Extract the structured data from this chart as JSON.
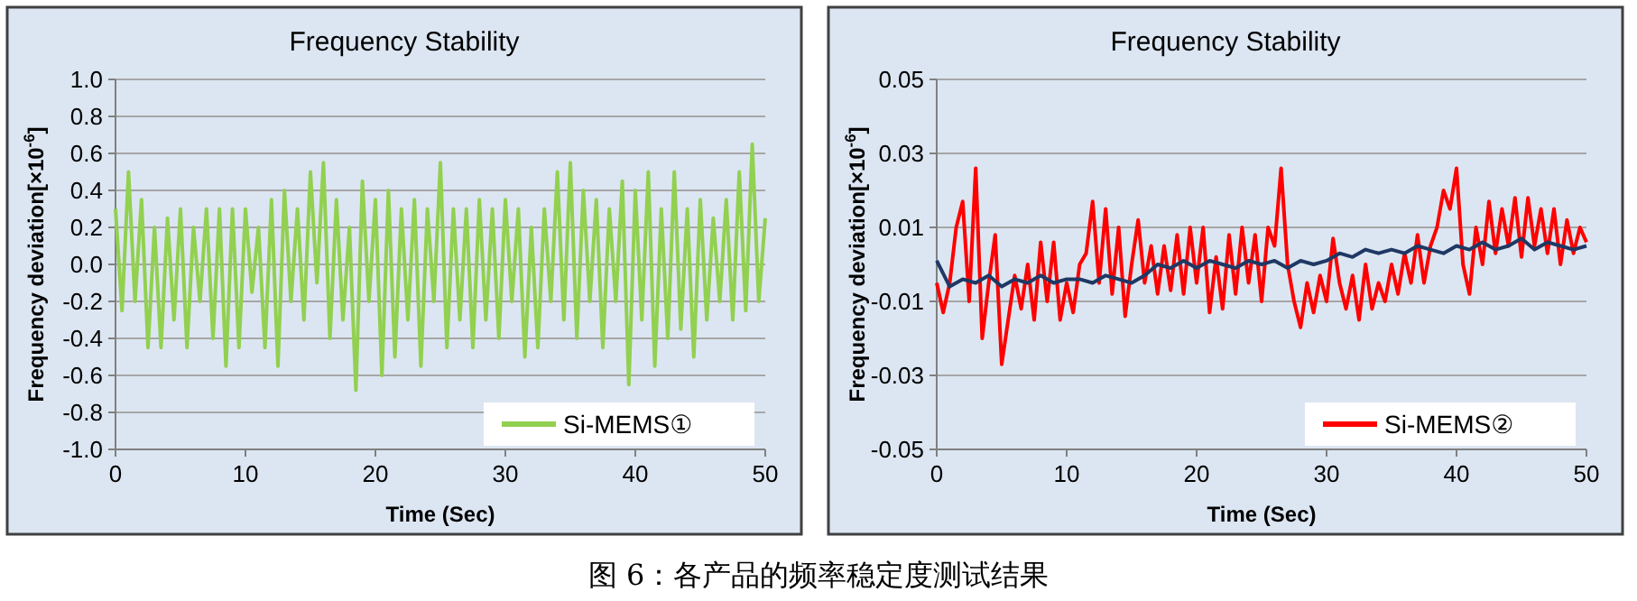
{
  "chart_data": [
    {
      "type": "line",
      "title": "Frequency Stability",
      "xlabel": "Time (Sec)",
      "ylabel": "Frequency deviation[×10$^{-6}$]",
      "xlim": [
        0,
        50
      ],
      "xticks": [
        0,
        10,
        20,
        30,
        40,
        50
      ],
      "ylim": [
        -1,
        1
      ],
      "yticks": [
        {
          "value": -1,
          "label": "-1.0"
        },
        -0.8,
        -0.6,
        -0.4,
        -0.2,
        {
          "value": 0,
          "label": "0.0"
        },
        0.2,
        0.4,
        0.6,
        0.8,
        {
          "value": 1,
          "label": "1.0"
        }
      ],
      "grid": "y",
      "legend": "bottom right",
      "annotations": [
        "图 6：各产品的频率稳定度测试结果"
      ],
      "series": [
        {
          "name": "Si-MEMS①",
          "color": "#92d050",
          "x": [
            0,
            0.5,
            1,
            1.5,
            2,
            2.5,
            3,
            3.5,
            4,
            4.5,
            5,
            5.5,
            6,
            6.5,
            7,
            7.5,
            8,
            8.5,
            9,
            9.5,
            10,
            10.5,
            11,
            11.5,
            12,
            12.5,
            13,
            13.5,
            14,
            14.5,
            15,
            15.5,
            16,
            16.5,
            17,
            17.5,
            18,
            18.5,
            19,
            19.5,
            20,
            20.5,
            21,
            21.5,
            22,
            22.5,
            23,
            23.5,
            24,
            24.5,
            25,
            25.5,
            26,
            26.5,
            27,
            27.5,
            28,
            28.5,
            29,
            29.5,
            30,
            30.5,
            31,
            31.5,
            32,
            32.5,
            33,
            33.5,
            34,
            34.5,
            35,
            35.5,
            36,
            36.5,
            37,
            37.5,
            38,
            38.5,
            39,
            39.5,
            40,
            40.5,
            41,
            41.5,
            42,
            42.5,
            43,
            43.5,
            44,
            44.5,
            45,
            45.5,
            46,
            46.5,
            47,
            47.5,
            48,
            48.5,
            49,
            49.5,
            50
          ],
          "values": [
            0.3,
            -0.25,
            0.5,
            -0.2,
            0.35,
            -0.45,
            0.2,
            -0.45,
            0.25,
            -0.3,
            0.3,
            -0.45,
            0.2,
            -0.2,
            0.3,
            -0.4,
            0.3,
            -0.55,
            0.3,
            -0.45,
            0.3,
            -0.15,
            0.2,
            -0.45,
            0.35,
            -0.55,
            0.4,
            -0.2,
            0.3,
            -0.3,
            0.5,
            -0.1,
            0.55,
            -0.4,
            0.35,
            -0.3,
            0.2,
            -0.68,
            0.45,
            -0.2,
            0.35,
            -0.6,
            0.4,
            -0.5,
            0.3,
            -0.3,
            0.35,
            -0.55,
            0.3,
            -0.2,
            0.55,
            -0.45,
            0.3,
            -0.3,
            0.3,
            -0.45,
            0.35,
            -0.3,
            0.3,
            -0.4,
            0.35,
            -0.2,
            0.3,
            -0.5,
            0.2,
            -0.45,
            0.3,
            -0.2,
            0.5,
            -0.3,
            0.55,
            -0.4,
            0.4,
            -0.2,
            0.35,
            -0.45,
            0.3,
            -0.2,
            0.45,
            -0.65,
            0.4,
            -0.3,
            0.5,
            -0.55,
            0.3,
            -0.4,
            0.5,
            -0.35,
            0.3,
            -0.5,
            0.35,
            -0.3,
            0.25,
            -0.2,
            0.35,
            -0.3,
            0.5,
            -0.25,
            0.65,
            -0.2,
            0.25
          ]
        }
      ]
    },
    {
      "type": "line",
      "title": "Frequency Stability",
      "xlabel": "Time (Sec)",
      "ylabel": "Frequency deviation[×10$^{-6}$]",
      "xlim": [
        0,
        50
      ],
      "xticks": [
        0,
        10,
        20,
        30,
        40,
        50
      ],
      "ylim": [
        -0.05,
        0.05
      ],
      "yticks": [
        -0.05,
        -0.03,
        -0.01,
        0.01,
        0.03,
        0.05
      ],
      "grid": "y",
      "legend": "bottom right",
      "series": [
        {
          "name": "Si-MEMS②",
          "color": "#ff0000",
          "x": [
            0,
            0.5,
            1,
            1.5,
            2,
            2.5,
            3,
            3.5,
            4,
            4.5,
            5,
            5.5,
            6,
            6.5,
            7,
            7.5,
            8,
            8.5,
            9,
            9.5,
            10,
            10.5,
            11,
            11.5,
            12,
            12.5,
            13,
            13.5,
            14,
            14.5,
            15,
            15.5,
            16,
            16.5,
            17,
            17.5,
            18,
            18.5,
            19,
            19.5,
            20,
            20.5,
            21,
            21.5,
            22,
            22.5,
            23,
            23.5,
            24,
            24.5,
            25,
            25.5,
            26,
            26.5,
            27,
            27.5,
            28,
            28.5,
            29,
            29.5,
            30,
            30.5,
            31,
            31.5,
            32,
            32.5,
            33,
            33.5,
            34,
            34.5,
            35,
            35.5,
            36,
            36.5,
            37,
            37.5,
            38,
            38.5,
            39,
            39.5,
            40,
            40.5,
            41,
            41.5,
            42,
            42.5,
            43,
            43.5,
            44,
            44.5,
            45,
            45.5,
            46,
            46.5,
            47,
            47.5,
            48,
            48.5,
            49,
            49.5,
            50
          ],
          "values": [
            -0.005,
            -0.013,
            -0.005,
            0.01,
            0.017,
            -0.01,
            0.026,
            -0.02,
            -0.005,
            0.008,
            -0.027,
            -0.015,
            -0.003,
            -0.012,
            0.0,
            -0.015,
            0.006,
            -0.01,
            0.006,
            -0.015,
            -0.005,
            -0.013,
            0.0,
            0.003,
            0.017,
            -0.005,
            0.015,
            -0.008,
            0.01,
            -0.014,
            0.0,
            0.012,
            -0.005,
            0.005,
            -0.008,
            0.005,
            -0.007,
            0.008,
            -0.008,
            0.01,
            -0.005,
            0.01,
            -0.013,
            0.002,
            -0.012,
            0.008,
            -0.008,
            0.01,
            -0.005,
            0.008,
            -0.01,
            0.01,
            0.005,
            0.026,
            0.0,
            -0.01,
            -0.017,
            -0.005,
            -0.013,
            -0.003,
            -0.01,
            0.007,
            -0.005,
            -0.012,
            -0.003,
            -0.015,
            0.0,
            -0.012,
            -0.005,
            -0.01,
            0.0,
            -0.008,
            0.003,
            -0.005,
            0.008,
            -0.005,
            0.005,
            0.01,
            0.02,
            0.015,
            0.026,
            0.0,
            -0.008,
            0.01,
            0.0,
            0.017,
            0.003,
            0.015,
            0.005,
            0.018,
            0.002,
            0.018,
            0.005,
            0.015,
            0.003,
            0.015,
            0.0,
            0.012,
            0.003,
            0.01,
            0.006
          ]
        },
        {
          "color": "#1f3864",
          "x": [
            0,
            1,
            2,
            3,
            4,
            5,
            6,
            7,
            8,
            9,
            10,
            11,
            12,
            13,
            14,
            15,
            16,
            17,
            18,
            19,
            20,
            21,
            22,
            23,
            24,
            25,
            26,
            27,
            28,
            29,
            30,
            31,
            32,
            33,
            34,
            35,
            36,
            37,
            38,
            39,
            40,
            41,
            42,
            43,
            44,
            45,
            46,
            47,
            48,
            49,
            50
          ],
          "values": [
            0.001,
            -0.006,
            -0.004,
            -0.005,
            -0.003,
            -0.006,
            -0.004,
            -0.005,
            -0.003,
            -0.005,
            -0.004,
            -0.004,
            -0.005,
            -0.003,
            -0.004,
            -0.005,
            -0.003,
            0.0,
            -0.001,
            0.001,
            -0.001,
            0.001,
            0.0,
            -0.001,
            0.001,
            0.0,
            0.001,
            -0.001,
            0.001,
            0.0,
            0.001,
            0.003,
            0.002,
            0.004,
            0.003,
            0.004,
            0.003,
            0.005,
            0.004,
            0.003,
            0.005,
            0.004,
            0.006,
            0.004,
            0.005,
            0.007,
            0.004,
            0.006,
            0.005,
            0.004,
            0.005
          ]
        }
      ]
    }
  ]
}
